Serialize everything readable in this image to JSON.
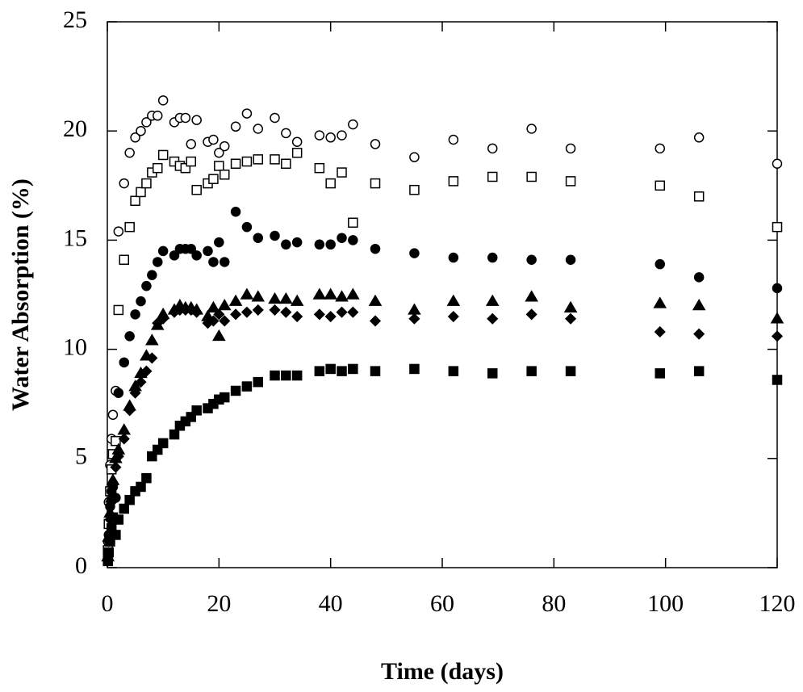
{
  "chart_data": {
    "type": "scatter",
    "x_label": "Time (days)",
    "y_label": "Water Absorption (%)",
    "xlim": [
      0,
      120
    ],
    "xticks": [
      0,
      20,
      40,
      60,
      80,
      100,
      120
    ],
    "ylim": [
      0,
      25
    ],
    "yticks": [
      0,
      5,
      10,
      15,
      20,
      25
    ],
    "grid": false,
    "x": [
      0.1,
      0.25,
      0.5,
      0.75,
      1,
      1.5,
      2,
      3,
      4,
      5,
      6,
      7,
      8,
      9,
      10,
      12,
      13,
      14,
      15,
      16,
      18,
      19,
      20,
      21,
      23,
      25,
      27,
      30,
      32,
      34,
      38,
      40,
      42,
      44,
      48,
      55,
      62,
      69,
      76,
      83,
      99,
      106,
      120
    ],
    "series": [
      {
        "marker": "circle",
        "filled": false,
        "color": "#000000",
        "values": [
          1.2,
          3.0,
          4.7,
          5.9,
          7.0,
          8.1,
          15.4,
          17.6,
          19.0,
          19.7,
          20.0,
          20.4,
          20.7,
          20.7,
          21.4,
          20.4,
          20.6,
          20.6,
          19.4,
          20.5,
          19.5,
          19.6,
          19.0,
          19.3,
          20.2,
          20.8,
          20.1,
          20.6,
          19.9,
          19.5,
          19.8,
          19.7,
          19.8,
          20.3,
          19.4,
          18.8,
          19.6,
          19.2,
          20.1,
          19.2,
          19.2,
          19.7,
          18.5
        ]
      },
      {
        "marker": "square",
        "filled": false,
        "color": "#000000",
        "values": [
          0.8,
          2.0,
          3.5,
          4.5,
          5.2,
          5.8,
          11.8,
          14.1,
          15.6,
          16.8,
          17.2,
          17.6,
          18.1,
          18.3,
          18.9,
          18.6,
          18.4,
          18.3,
          18.6,
          17.3,
          17.6,
          17.8,
          18.4,
          18.0,
          18.5,
          18.6,
          18.7,
          18.7,
          18.5,
          19.0,
          18.3,
          17.6,
          18.1,
          15.8,
          17.6,
          17.3,
          17.7,
          17.9,
          17.9,
          17.7,
          17.5,
          17.0,
          15.6
        ]
      },
      {
        "marker": "circle",
        "filled": true,
        "color": "#000000",
        "values": [
          0.6,
          1.5,
          2.8,
          3.5,
          3.7,
          3.2,
          8.0,
          9.4,
          10.6,
          11.6,
          12.2,
          12.9,
          13.4,
          14.0,
          14.5,
          14.3,
          14.6,
          14.6,
          14.6,
          14.3,
          14.5,
          14.0,
          14.9,
          14.0,
          16.3,
          15.6,
          15.1,
          15.2,
          14.8,
          14.9,
          14.8,
          14.8,
          15.1,
          15.0,
          14.6,
          14.4,
          14.2,
          14.2,
          14.1,
          14.1,
          13.9,
          13.3,
          12.8
        ]
      },
      {
        "marker": "triangle",
        "filled": true,
        "color": "#000000",
        "values": [
          0.5,
          1.4,
          2.5,
          3.2,
          4.0,
          5.0,
          5.4,
          6.3,
          7.4,
          8.3,
          8.9,
          9.7,
          10.4,
          11.1,
          11.6,
          11.8,
          12.0,
          11.9,
          11.9,
          11.8,
          11.5,
          11.9,
          10.6,
          12.0,
          12.2,
          12.5,
          12.4,
          12.3,
          12.3,
          12.2,
          12.5,
          12.5,
          12.4,
          12.5,
          12.2,
          11.8,
          12.2,
          12.2,
          12.4,
          11.9,
          12.1,
          12.0,
          11.4
        ]
      },
      {
        "marker": "diamond",
        "filled": true,
        "color": "#000000",
        "values": [
          0.4,
          1.2,
          2.2,
          3.0,
          3.8,
          4.6,
          5.1,
          5.9,
          7.2,
          8.0,
          8.5,
          9.0,
          9.6,
          11.2,
          11.4,
          11.7,
          11.8,
          11.8,
          11.8,
          11.7,
          11.2,
          11.3,
          11.6,
          11.3,
          11.6,
          11.7,
          11.8,
          11.8,
          11.7,
          11.5,
          11.6,
          11.5,
          11.7,
          11.7,
          11.3,
          11.4,
          11.5,
          11.4,
          11.6,
          11.4,
          10.8,
          10.7,
          10.6
        ]
      },
      {
        "marker": "square",
        "filled": true,
        "color": "#000000",
        "values": [
          0.3,
          0.7,
          1.2,
          1.8,
          2.3,
          1.5,
          2.2,
          2.7,
          3.1,
          3.5,
          3.7,
          4.1,
          5.1,
          5.4,
          5.7,
          6.1,
          6.5,
          6.7,
          6.9,
          7.2,
          7.3,
          7.5,
          7.7,
          7.8,
          8.1,
          8.3,
          8.5,
          8.8,
          8.8,
          8.8,
          9.0,
          9.1,
          9.0,
          9.1,
          9.0,
          9.1,
          9.0,
          8.9,
          9.0,
          9.0,
          8.9,
          9.0,
          8.6
        ]
      }
    ]
  }
}
